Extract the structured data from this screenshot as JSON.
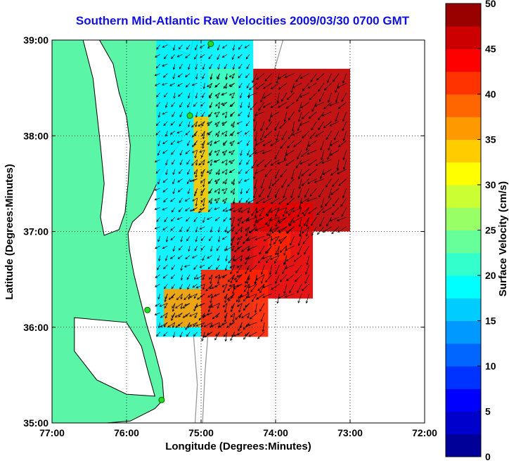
{
  "chart_data": {
    "type": "heatmap",
    "title": "Southern Mid-Atlantic Raw Velocities 2009/03/30 0700 GMT",
    "xlabel": "Longitude (Degrees:Minutes)",
    "ylabel": "Latitude (Degrees:Minutes)",
    "xlim": [
      -77,
      -72
    ],
    "ylim": [
      35,
      39
    ],
    "x_ticks": [
      {
        "value": -77,
        "label": "77:00"
      },
      {
        "value": -76,
        "label": "76:00"
      },
      {
        "value": -75,
        "label": "75:00"
      },
      {
        "value": -74,
        "label": "74:00"
      },
      {
        "value": -73,
        "label": "73:00"
      },
      {
        "value": -72,
        "label": "72:00"
      }
    ],
    "y_ticks": [
      {
        "value": 35,
        "label": "35:00"
      },
      {
        "value": 36,
        "label": "36:00"
      },
      {
        "value": 37,
        "label": "37:00"
      },
      {
        "value": 38,
        "label": "38:00"
      },
      {
        "value": 39,
        "label": "39:00"
      }
    ],
    "grid": true,
    "grid_style": "dotted",
    "colorbar": {
      "label": "Surface Velocity (cm/s)",
      "min": 0,
      "max": 50,
      "ticks": [
        0,
        5,
        10,
        15,
        20,
        25,
        30,
        35,
        40,
        45,
        50
      ],
      "colormap": "jet",
      "levels": 20
    },
    "regions": [
      {
        "lat_min": 35.9,
        "lat_max": 39.0,
        "lon_min": -75.6,
        "lon_max": -74.3,
        "speed": 18
      },
      {
        "lat_min": 37.3,
        "lat_max": 38.7,
        "lon_min": -74.9,
        "lon_max": -74.5,
        "speed": 22
      },
      {
        "lat_min": 37.2,
        "lat_max": 38.2,
        "lon_min": -75.1,
        "lon_max": -74.9,
        "speed": 34
      },
      {
        "lat_min": 37.0,
        "lat_max": 38.7,
        "lon_min": -74.3,
        "lon_max": -73.0,
        "speed": 47
      },
      {
        "lat_min": 36.3,
        "lat_max": 37.3,
        "lon_min": -74.6,
        "lon_max": -73.5,
        "speed": 45
      },
      {
        "lat_min": 35.9,
        "lat_max": 36.6,
        "lon_min": -75.0,
        "lon_max": -74.1,
        "speed": 42
      },
      {
        "lat_min": 36.0,
        "lat_max": 36.4,
        "lon_min": -75.5,
        "lon_max": -75.0,
        "speed": 36
      },
      {
        "lat_min": 36.7,
        "lat_max": 37.0,
        "lon_min": -74.1,
        "lon_max": -73.8,
        "speed": 42
      }
    ],
    "land_color": "#5bf5a8",
    "station_color": "#22dd22",
    "stations": [
      {
        "lon": -74.87,
        "lat": 38.96
      },
      {
        "lon": -75.15,
        "lat": 38.21
      },
      {
        "lon": -75.72,
        "lat": 36.18
      },
      {
        "lon": -75.53,
        "lat": 35.24
      }
    ]
  }
}
